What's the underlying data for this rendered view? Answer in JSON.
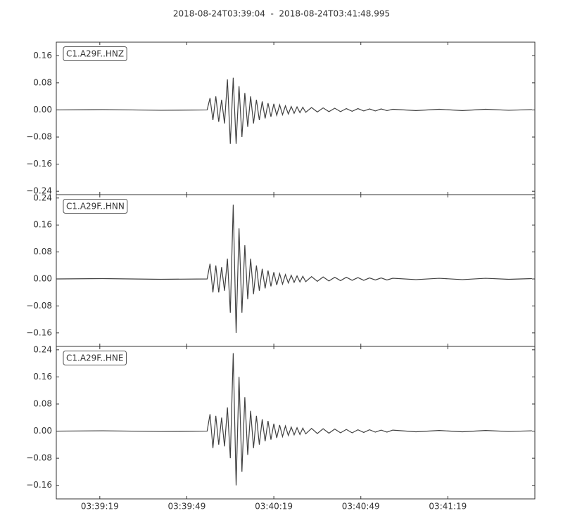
{
  "title": "2018-08-24T03:39:04  -  2018-08-24T03:41:48.995",
  "chart_data": [
    {
      "type": "line",
      "xlim": [
        "03:39:04",
        "03:41:48.995"
      ],
      "ylim": [
        -0.25,
        0.2
      ],
      "yticks": [
        0.16,
        0.08,
        {
          "value": 0,
          "label": "0.00"
        },
        {
          "value": -0.08,
          "label": "−0.08"
        },
        {
          "value": -0.16,
          "label": "−0.16"
        },
        {
          "value": -0.24,
          "label": "−0.24"
        }
      ],
      "x": [
        "03:39:04",
        "03:39:20",
        "03:39:40",
        "03:39:56",
        "03:39:57",
        "03:39:58",
        "03:39:59",
        "03:40:00",
        "03:40:01",
        "03:40:02",
        "03:40:03",
        "03:40:04",
        "03:40:05",
        "03:40:06",
        "03:40:07",
        "03:40:08",
        "03:40:09",
        "03:40:10",
        "03:40:11",
        "03:40:12",
        "03:40:13",
        "03:40:14",
        "03:40:15",
        "03:40:16",
        "03:40:17",
        "03:40:18",
        "03:40:19",
        "03:40:20",
        "03:40:21",
        "03:40:22",
        "03:40:23",
        "03:40:24",
        "03:40:25",
        "03:40:26",
        "03:40:27",
        "03:40:28",
        "03:40:29",
        "03:40:30",
        "03:40:32",
        "03:40:34",
        "03:40:36",
        "03:40:38",
        "03:40:40",
        "03:40:42",
        "03:40:44",
        "03:40:46",
        "03:40:48",
        "03:40:50",
        "03:40:52",
        "03:40:54",
        "03:40:56",
        "03:40:58",
        "03:41:00",
        "03:41:08",
        "03:41:16",
        "03:41:24",
        "03:41:32",
        "03:41:40",
        "03:41:48"
      ],
      "series": [
        {
          "name": "C1.A29F..HNZ",
          "color": "#404040",
          "values": [
            0,
            0.001,
            -0.001,
            0,
            0.035,
            -0.03,
            0.04,
            -0.035,
            0.03,
            -0.04,
            0.09,
            -0.1,
            0.095,
            -0.1,
            0.07,
            -0.08,
            0.05,
            -0.05,
            0.04,
            -0.04,
            0.03,
            -0.03,
            0.025,
            -0.025,
            0.02,
            -0.02,
            0.018,
            -0.016,
            0.015,
            -0.014,
            0.012,
            -0.012,
            0.01,
            -0.01,
            0.009,
            -0.008,
            0.008,
            -0.007,
            0.007,
            -0.006,
            0.006,
            -0.005,
            0.005,
            -0.005,
            0.004,
            -0.004,
            0.004,
            -0.003,
            0.003,
            -0.003,
            0.003,
            -0.002,
            0.002,
            -0.002,
            0.002,
            -0.002,
            0.002,
            -0.001,
            0.001
          ]
        }
      ]
    },
    {
      "type": "line",
      "xlim": [
        "03:39:04",
        "03:41:48.995"
      ],
      "ylim": [
        -0.2,
        0.25
      ],
      "yticks": [
        0.24,
        0.16,
        0.08,
        {
          "value": 0,
          "label": "0.00"
        },
        {
          "value": -0.08,
          "label": "−0.08"
        },
        {
          "value": -0.16,
          "label": "−0.16"
        }
      ],
      "x": [
        "03:39:04",
        "03:39:20",
        "03:39:40",
        "03:39:56",
        "03:39:57",
        "03:39:58",
        "03:39:59",
        "03:40:00",
        "03:40:01",
        "03:40:02",
        "03:40:03",
        "03:40:04",
        "03:40:05",
        "03:40:06",
        "03:40:07",
        "03:40:08",
        "03:40:09",
        "03:40:10",
        "03:40:11",
        "03:40:12",
        "03:40:13",
        "03:40:14",
        "03:40:15",
        "03:40:16",
        "03:40:17",
        "03:40:18",
        "03:40:19",
        "03:40:20",
        "03:40:21",
        "03:40:22",
        "03:40:23",
        "03:40:24",
        "03:40:25",
        "03:40:26",
        "03:40:27",
        "03:40:28",
        "03:40:29",
        "03:40:30",
        "03:40:32",
        "03:40:34",
        "03:40:36",
        "03:40:38",
        "03:40:40",
        "03:40:42",
        "03:40:44",
        "03:40:46",
        "03:40:48",
        "03:40:50",
        "03:40:52",
        "03:40:54",
        "03:40:56",
        "03:40:58",
        "03:41:00",
        "03:41:08",
        "03:41:16",
        "03:41:24",
        "03:41:32",
        "03:41:40",
        "03:41:48"
      ],
      "series": [
        {
          "name": "C1.A29F..HNN",
          "color": "#404040",
          "values": [
            0,
            0.001,
            -0.001,
            0,
            0.045,
            -0.04,
            0.04,
            -0.04,
            0.035,
            -0.035,
            0.06,
            -0.1,
            0.22,
            -0.16,
            0.15,
            -0.1,
            0.1,
            -0.06,
            0.06,
            -0.045,
            0.04,
            -0.035,
            0.03,
            -0.028,
            0.025,
            -0.022,
            0.02,
            -0.018,
            0.016,
            -0.015,
            0.013,
            -0.012,
            0.011,
            -0.01,
            0.009,
            -0.009,
            0.008,
            -0.008,
            0.007,
            -0.007,
            0.006,
            -0.006,
            0.005,
            -0.005,
            0.005,
            -0.004,
            0.004,
            -0.004,
            0.003,
            -0.003,
            0.003,
            -0.003,
            0.002,
            -0.002,
            0.002,
            -0.002,
            0.002,
            -0.001,
            0.001
          ]
        }
      ]
    },
    {
      "type": "line",
      "xlim": [
        "03:39:04",
        "03:41:48.995"
      ],
      "ylim": [
        -0.2,
        0.25
      ],
      "yticks": [
        0.24,
        0.16,
        0.08,
        {
          "value": 0,
          "label": "0.00"
        },
        {
          "value": -0.08,
          "label": "−0.08"
        },
        {
          "value": -0.16,
          "label": "−0.16"
        }
      ],
      "xticks": [
        "03:39:19",
        "03:39:49",
        "03:40:19",
        "03:40:49",
        "03:41:19"
      ],
      "x": [
        "03:39:04",
        "03:39:20",
        "03:39:40",
        "03:39:56",
        "03:39:57",
        "03:39:58",
        "03:39:59",
        "03:40:00",
        "03:40:01",
        "03:40:02",
        "03:40:03",
        "03:40:04",
        "03:40:05",
        "03:40:06",
        "03:40:07",
        "03:40:08",
        "03:40:09",
        "03:40:10",
        "03:40:11",
        "03:40:12",
        "03:40:13",
        "03:40:14",
        "03:40:15",
        "03:40:16",
        "03:40:17",
        "03:40:18",
        "03:40:19",
        "03:40:20",
        "03:40:21",
        "03:40:22",
        "03:40:23",
        "03:40:24",
        "03:40:25",
        "03:40:26",
        "03:40:27",
        "03:40:28",
        "03:40:29",
        "03:40:30",
        "03:40:32",
        "03:40:34",
        "03:40:36",
        "03:40:38",
        "03:40:40",
        "03:40:42",
        "03:40:44",
        "03:40:46",
        "03:40:48",
        "03:40:50",
        "03:40:52",
        "03:40:54",
        "03:40:56",
        "03:40:58",
        "03:41:00",
        "03:41:08",
        "03:41:16",
        "03:41:24",
        "03:41:32",
        "03:41:40",
        "03:41:48"
      ],
      "series": [
        {
          "name": "C1.A29F..HNE",
          "color": "#404040",
          "values": [
            0,
            0.001,
            -0.001,
            0,
            0.05,
            -0.05,
            0.045,
            -0.04,
            0.04,
            -0.045,
            0.07,
            -0.08,
            0.23,
            -0.16,
            0.16,
            -0.12,
            0.1,
            -0.07,
            0.06,
            -0.05,
            0.045,
            -0.04,
            0.035,
            -0.03,
            0.03,
            -0.025,
            0.022,
            -0.02,
            0.018,
            -0.016,
            0.015,
            -0.013,
            0.012,
            -0.011,
            0.01,
            -0.01,
            0.009,
            -0.008,
            0.008,
            -0.007,
            0.007,
            -0.006,
            0.006,
            -0.005,
            0.005,
            -0.005,
            0.004,
            -0.004,
            0.004,
            -0.003,
            0.003,
            -0.003,
            0.003,
            -0.002,
            0.002,
            -0.002,
            0.002,
            -0.001,
            0.001
          ]
        }
      ]
    }
  ]
}
